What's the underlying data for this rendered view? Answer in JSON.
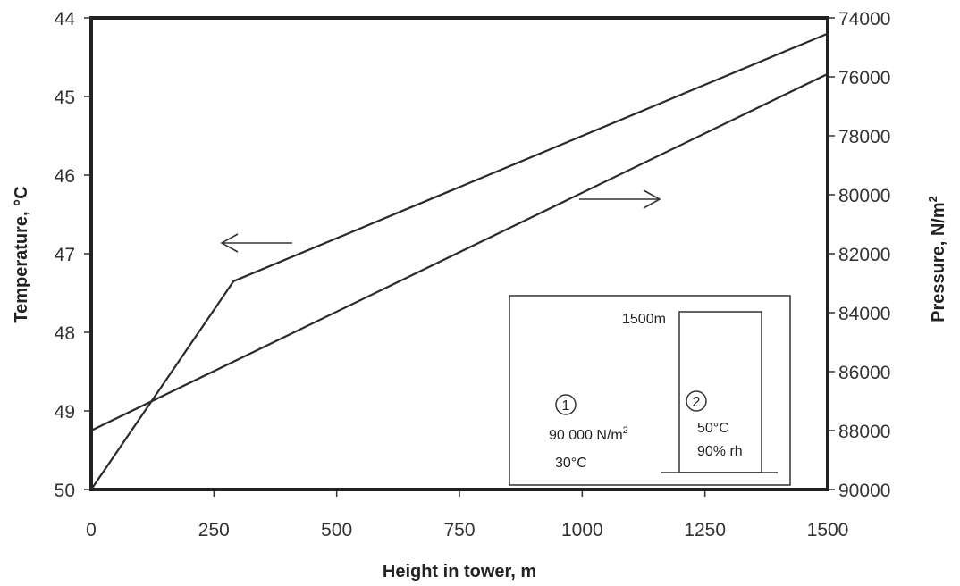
{
  "chart_data": {
    "type": "line",
    "xlabel": "Height in tower, m",
    "ylabel_left": "Temperature, °C",
    "ylabel_right_base": "Pressure, N/m",
    "ylabel_right_sup": "2",
    "xlim": [
      0,
      1500
    ],
    "ylim_left": [
      50,
      44
    ],
    "ylim_right": [
      90000,
      74000
    ],
    "left_axis_inverted": true,
    "right_axis_inverted": true,
    "x_ticks": [
      "0",
      "250",
      "500",
      "750",
      "1000",
      "1250",
      "1500"
    ],
    "y_left_ticks": [
      "44",
      "45",
      "46",
      "47",
      "48",
      "49",
      "50"
    ],
    "y_right_ticks": [
      "74000",
      "76000",
      "78000",
      "80000",
      "82000",
      "84000",
      "86000",
      "88000",
      "90000"
    ],
    "grid": false,
    "series": [
      {
        "axis": "left",
        "x": [
          0,
          290,
          1500
        ],
        "y": [
          50.0,
          47.35,
          44.2
        ]
      },
      {
        "axis": "right",
        "x": [
          0,
          1500
        ],
        "y": [
          88000,
          75900
        ]
      }
    ],
    "annotations": [
      {
        "text": "←",
        "points_to": "left axis"
      },
      {
        "text": "→",
        "points_to": "right axis"
      }
    ],
    "inset": {
      "height_label": "1500m",
      "station_1": "1",
      "station_1_pressure_base": "90 000 N/m",
      "station_1_pressure_sup": "2",
      "station_1_temp": "30°C",
      "station_2": "2",
      "station_2_temp": "50°C",
      "station_2_rh": "90% rh"
    }
  }
}
